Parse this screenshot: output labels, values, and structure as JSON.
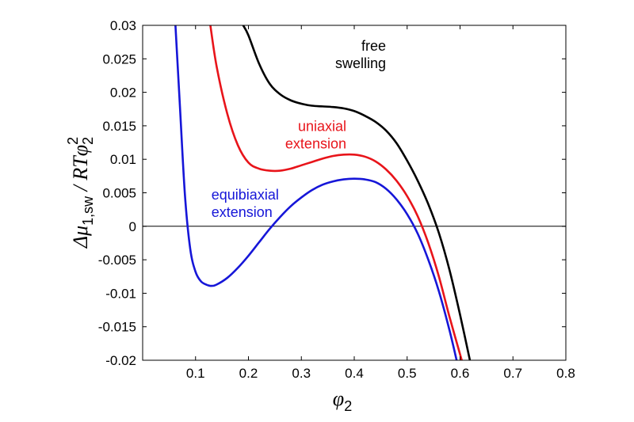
{
  "chart_data": {
    "type": "line",
    "xlim": [
      0,
      0.8
    ],
    "ylim": [
      -0.02,
      0.03
    ],
    "x_ticks": [
      "0.1",
      "0.2",
      "0.3",
      "0.4",
      "0.5",
      "0.6",
      "0.7",
      "0.8"
    ],
    "y_ticks": [
      "-0.02",
      "-0.015",
      "-0.01",
      "-0.005",
      "0",
      "0.005",
      "0.01",
      "0.015",
      "0.02",
      "0.025",
      "0.03"
    ],
    "xlabel": {
      "main": "φ",
      "sub": "2"
    },
    "ylabel": {
      "delta_mu": "Δμ",
      "mu_sub": "1,sw",
      "slash_rt": " / RTφ",
      "phi_sub": "2",
      "phi_sup": "2"
    },
    "zero_line": 0,
    "grid": false,
    "series": [
      {
        "color": "#000000",
        "label_lines": [
          "free",
          "swelling"
        ],
        "points": [
          [
            0.19,
            0.03
          ],
          [
            0.2,
            0.0285
          ],
          [
            0.22,
            0.0243
          ],
          [
            0.24,
            0.0213
          ],
          [
            0.26,
            0.0197
          ],
          [
            0.28,
            0.0188
          ],
          [
            0.3,
            0.0183
          ],
          [
            0.32,
            0.018
          ],
          [
            0.34,
            0.0179
          ],
          [
            0.36,
            0.0178
          ],
          [
            0.38,
            0.0176
          ],
          [
            0.4,
            0.0172
          ],
          [
            0.42,
            0.0165
          ],
          [
            0.44,
            0.0156
          ],
          [
            0.46,
            0.0143
          ],
          [
            0.48,
            0.0124
          ],
          [
            0.5,
            0.0098
          ],
          [
            0.52,
            0.0068
          ],
          [
            0.54,
            0.0033
          ],
          [
            0.56,
            -0.001
          ],
          [
            0.58,
            -0.0065
          ],
          [
            0.6,
            -0.0132
          ],
          [
            0.62,
            -0.0205
          ]
        ]
      },
      {
        "color": "#e8141a",
        "label_lines": [
          "uniaxial",
          "extension"
        ],
        "points": [
          [
            0.128,
            0.03
          ],
          [
            0.14,
            0.0238
          ],
          [
            0.16,
            0.0168
          ],
          [
            0.18,
            0.0121
          ],
          [
            0.2,
            0.0095
          ],
          [
            0.22,
            0.0086
          ],
          [
            0.24,
            0.0083
          ],
          [
            0.26,
            0.0083
          ],
          [
            0.28,
            0.0086
          ],
          [
            0.3,
            0.0091
          ],
          [
            0.32,
            0.0096
          ],
          [
            0.34,
            0.0101
          ],
          [
            0.36,
            0.0105
          ],
          [
            0.38,
            0.0107
          ],
          [
            0.4,
            0.0107
          ],
          [
            0.42,
            0.0104
          ],
          [
            0.44,
            0.0097
          ],
          [
            0.46,
            0.0085
          ],
          [
            0.48,
            0.0068
          ],
          [
            0.5,
            0.0045
          ],
          [
            0.52,
            0.0015
          ],
          [
            0.54,
            -0.0025
          ],
          [
            0.56,
            -0.0075
          ],
          [
            0.58,
            -0.0135
          ],
          [
            0.605,
            -0.0205
          ]
        ]
      },
      {
        "color": "#1616d8",
        "label_lines": [
          "equibiaxial",
          "extension"
        ],
        "points": [
          [
            0.062,
            0.03
          ],
          [
            0.07,
            0.0186
          ],
          [
            0.08,
            0.0046
          ],
          [
            0.09,
            -0.0034
          ],
          [
            0.1,
            -0.0068
          ],
          [
            0.11,
            -0.0082
          ],
          [
            0.12,
            -0.0087
          ],
          [
            0.13,
            -0.0089
          ],
          [
            0.14,
            -0.0087
          ],
          [
            0.16,
            -0.0077
          ],
          [
            0.18,
            -0.0062
          ],
          [
            0.2,
            -0.0044
          ],
          [
            0.22,
            -0.0024
          ],
          [
            0.24,
            -0.0004
          ],
          [
            0.26,
            0.0014
          ],
          [
            0.28,
            0.003
          ],
          [
            0.3,
            0.0043
          ],
          [
            0.32,
            0.0054
          ],
          [
            0.34,
            0.0062
          ],
          [
            0.36,
            0.0067
          ],
          [
            0.38,
            0.007
          ],
          [
            0.4,
            0.0071
          ],
          [
            0.42,
            0.007
          ],
          [
            0.44,
            0.0066
          ],
          [
            0.46,
            0.0056
          ],
          [
            0.48,
            0.004
          ],
          [
            0.5,
            0.0018
          ],
          [
            0.52,
            -0.0011
          ],
          [
            0.54,
            -0.005
          ],
          [
            0.56,
            -0.0097
          ],
          [
            0.58,
            -0.0155
          ],
          [
            0.595,
            -0.0205
          ]
        ]
      }
    ]
  }
}
